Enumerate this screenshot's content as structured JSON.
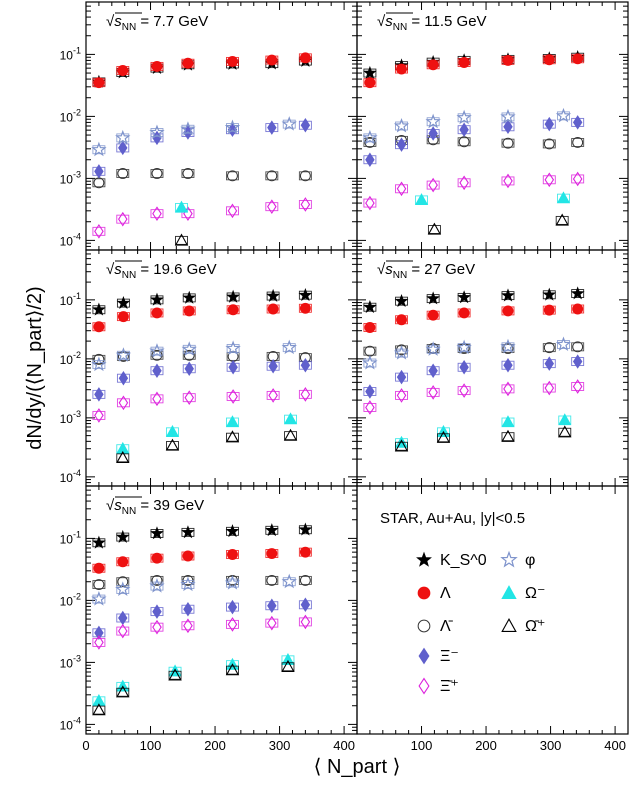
{
  "figure": {
    "y_axis_label": "dN/dy/(⟨N_part⟩/2)",
    "x_axis_label": "⟨ N_part ⟩",
    "experiment_label": "STAR, Au+Au, |y|<0.5"
  },
  "axes": {
    "x": {
      "min": 0,
      "max": 420,
      "ticks": [
        0,
        100,
        200,
        300,
        400
      ],
      "tick_labels": [
        "0",
        "100",
        "200",
        "300",
        "400"
      ]
    },
    "y": {
      "scale": "log",
      "min": 7e-05,
      "max": 0.7,
      "ticks": [
        0.0001,
        0.001,
        0.01,
        0.1
      ],
      "tick_labels": [
        "10^-4",
        "10^-3",
        "10^-2",
        "10^-1"
      ]
    }
  },
  "species": [
    {
      "key": "K0S",
      "label": "K_S^0",
      "marker": "star-filled",
      "color": "#000000"
    },
    {
      "key": "phi",
      "label": "φ",
      "marker": "star-open",
      "color": "#7f94cc"
    },
    {
      "key": "Lambda",
      "label": "Λ",
      "marker": "circle-filled",
      "color": "#ee1111"
    },
    {
      "key": "Omega",
      "label": "Ω⁻",
      "marker": "triangle-filled",
      "color": "#22e5e5"
    },
    {
      "key": "AntiLambda",
      "label": "Λ̄",
      "marker": "circle-open",
      "color": "#333333"
    },
    {
      "key": "AntiOmega",
      "label": "Ω̄⁺",
      "marker": "triangle-open",
      "color": "#000000"
    },
    {
      "key": "Xi",
      "label": "Ξ⁻",
      "marker": "diamond-filled",
      "color": "#6060cc"
    },
    {
      "key": "AntiXi",
      "label": "Ξ̄⁺",
      "marker": "diamond-open",
      "color": "#dd22dd"
    }
  ],
  "chart_data": [
    {
      "type": "scatter",
      "y_scale": "log",
      "energy_label": "√s_NN = 7.7 GeV",
      "series": [
        {
          "name": "K_S^0",
          "x": [
            20,
            57,
            110,
            158,
            227,
            288,
            340
          ],
          "y": [
            0.036,
            0.051,
            0.06,
            0.068,
            0.07,
            0.071,
            0.078
          ]
        },
        {
          "name": "Λ",
          "x": [
            20,
            57,
            110,
            158,
            227,
            288,
            340
          ],
          "y": [
            0.035,
            0.055,
            0.064,
            0.072,
            0.077,
            0.081,
            0.088
          ]
        },
        {
          "name": "Λ̄",
          "x": [
            20,
            57,
            110,
            158,
            227,
            288,
            340
          ],
          "y": [
            0.00085,
            0.0012,
            0.0012,
            0.0012,
            0.0011,
            0.0011,
            0.0011
          ]
        },
        {
          "name": "Ξ⁻",
          "x": [
            20,
            57,
            110,
            158,
            227,
            288,
            340
          ],
          "y": [
            0.0013,
            0.0031,
            0.0045,
            0.0055,
            0.0061,
            0.0066,
            0.0072
          ]
        },
        {
          "name": "Ξ̄⁺",
          "x": [
            20,
            57,
            110,
            158,
            227,
            288,
            340
          ],
          "y": [
            0.00014,
            0.00022,
            0.00027,
            0.00027,
            0.0003,
            0.00035,
            0.00038
          ]
        },
        {
          "name": "φ",
          "x": [
            20,
            57,
            110,
            158,
            227,
            315
          ],
          "y": [
            0.0029,
            0.0045,
            0.0055,
            0.0062,
            0.0066,
            0.0075
          ]
        },
        {
          "name": "Ω⁻",
          "x": [
            148
          ],
          "y": [
            0.00034
          ]
        },
        {
          "name": "Ω̄⁺",
          "x": [
            148
          ],
          "y": [
            0.0001
          ]
        }
      ]
    },
    {
      "type": "scatter",
      "y_scale": "log",
      "energy_label": "√s_NN = 11.5 GeV",
      "series": [
        {
          "name": "K_S^0",
          "x": [
            20,
            69,
            118,
            166,
            234,
            298,
            342
          ],
          "y": [
            0.05,
            0.066,
            0.075,
            0.08,
            0.083,
            0.086,
            0.09
          ]
        },
        {
          "name": "Λ",
          "x": [
            20,
            69,
            118,
            166,
            234,
            298,
            342
          ],
          "y": [
            0.035,
            0.058,
            0.068,
            0.074,
            0.08,
            0.082,
            0.085
          ]
        },
        {
          "name": "Λ̄",
          "x": [
            20,
            69,
            118,
            166,
            234,
            298,
            342
          ],
          "y": [
            0.0038,
            0.0041,
            0.0042,
            0.0039,
            0.0037,
            0.0036,
            0.0038
          ]
        },
        {
          "name": "Ξ⁻",
          "x": [
            20,
            69,
            118,
            166,
            234,
            298,
            342
          ],
          "y": [
            0.002,
            0.0035,
            0.0053,
            0.0061,
            0.0068,
            0.0075,
            0.008
          ]
        },
        {
          "name": "Ξ̄⁺",
          "x": [
            20,
            69,
            118,
            166,
            234,
            298,
            342
          ],
          "y": [
            0.0004,
            0.00068,
            0.00078,
            0.00085,
            0.00091,
            0.00095,
            0.00098
          ]
        },
        {
          "name": "φ",
          "x": [
            20,
            69,
            118,
            166,
            234,
            320
          ],
          "y": [
            0.0045,
            0.007,
            0.0082,
            0.0095,
            0.0098,
            0.0102
          ]
        },
        {
          "name": "Ω⁻",
          "x": [
            100,
            320
          ],
          "y": [
            0.00045,
            0.00048
          ]
        },
        {
          "name": "Ω̄⁺",
          "x": [
            120,
            318
          ],
          "y": [
            0.00015,
            0.00021
          ]
        }
      ]
    },
    {
      "type": "scatter",
      "y_scale": "log",
      "energy_label": "√s_NN = 19.6 GeV",
      "series": [
        {
          "name": "K_S^0",
          "x": [
            20,
            58,
            110,
            160,
            228,
            290,
            340
          ],
          "y": [
            0.068,
            0.088,
            0.1,
            0.108,
            0.112,
            0.116,
            0.12
          ]
        },
        {
          "name": "Λ",
          "x": [
            20,
            58,
            110,
            160,
            228,
            290,
            340
          ],
          "y": [
            0.035,
            0.052,
            0.06,
            0.065,
            0.068,
            0.07,
            0.072
          ]
        },
        {
          "name": "Λ̄",
          "x": [
            20,
            58,
            110,
            160,
            228,
            290,
            340
          ],
          "y": [
            0.0098,
            0.011,
            0.0115,
            0.0115,
            0.011,
            0.011,
            0.0105
          ]
        },
        {
          "name": "Ξ⁻",
          "x": [
            20,
            58,
            110,
            160,
            228,
            290,
            340
          ],
          "y": [
            0.0025,
            0.0047,
            0.0063,
            0.0068,
            0.0072,
            0.0075,
            0.0078
          ]
        },
        {
          "name": "Ξ̄⁺",
          "x": [
            20,
            58,
            110,
            160,
            228,
            290,
            340
          ],
          "y": [
            0.0011,
            0.0018,
            0.0021,
            0.0022,
            0.0023,
            0.0024,
            0.0025
          ]
        },
        {
          "name": "φ",
          "x": [
            20,
            58,
            110,
            160,
            228,
            315
          ],
          "y": [
            0.008,
            0.0115,
            0.0135,
            0.0145,
            0.015,
            0.0155
          ]
        },
        {
          "name": "Ω⁻",
          "x": [
            57,
            134,
            227,
            317
          ],
          "y": [
            0.0003,
            0.00058,
            0.00085,
            0.00095
          ]
        },
        {
          "name": "Ω̄⁺",
          "x": [
            57,
            134,
            227,
            317
          ],
          "y": [
            0.00021,
            0.00034,
            0.00047,
            0.0005
          ]
        }
      ]
    },
    {
      "type": "scatter",
      "y_scale": "log",
      "energy_label": "√s_NN = 27 GeV",
      "series": [
        {
          "name": "K_S^0",
          "x": [
            20,
            69,
            118,
            166,
            234,
            298,
            342
          ],
          "y": [
            0.075,
            0.095,
            0.105,
            0.11,
            0.118,
            0.122,
            0.128
          ]
        },
        {
          "name": "Λ",
          "x": [
            20,
            69,
            118,
            166,
            234,
            298,
            342
          ],
          "y": [
            0.034,
            0.046,
            0.055,
            0.06,
            0.065,
            0.067,
            0.07
          ]
        },
        {
          "name": "Λ̄",
          "x": [
            20,
            69,
            118,
            166,
            234,
            298,
            342
          ],
          "y": [
            0.0135,
            0.0142,
            0.015,
            0.015,
            0.015,
            0.0155,
            0.016
          ]
        },
        {
          "name": "Ξ⁻",
          "x": [
            20,
            69,
            118,
            166,
            234,
            298,
            342
          ],
          "y": [
            0.0028,
            0.0049,
            0.0063,
            0.0072,
            0.0078,
            0.0083,
            0.009
          ]
        },
        {
          "name": "Ξ̄⁺",
          "x": [
            20,
            69,
            118,
            166,
            234,
            298,
            342
          ],
          "y": [
            0.0015,
            0.0024,
            0.0027,
            0.0029,
            0.0031,
            0.0032,
            0.0034
          ]
        },
        {
          "name": "φ",
          "x": [
            20,
            69,
            118,
            166,
            234,
            320
          ],
          "y": [
            0.0085,
            0.0125,
            0.0145,
            0.0155,
            0.016,
            0.0175
          ]
        },
        {
          "name": "Ω⁻",
          "x": [
            69,
            134,
            234,
            322
          ],
          "y": [
            0.00038,
            0.00058,
            0.00085,
            0.00092
          ]
        },
        {
          "name": "Ω̄⁺",
          "x": [
            69,
            134,
            234,
            322
          ],
          "y": [
            0.00033,
            0.00046,
            0.00048,
            0.00057
          ]
        }
      ]
    },
    {
      "type": "scatter",
      "y_scale": "log",
      "energy_label": "√s_NN = 39 GeV",
      "series": [
        {
          "name": "K_S^0",
          "x": [
            20,
            57,
            110,
            158,
            227,
            288,
            340
          ],
          "y": [
            0.085,
            0.105,
            0.12,
            0.125,
            0.13,
            0.135,
            0.138
          ]
        },
        {
          "name": "Λ",
          "x": [
            20,
            57,
            110,
            158,
            227,
            288,
            340
          ],
          "y": [
            0.033,
            0.042,
            0.048,
            0.052,
            0.055,
            0.057,
            0.06
          ]
        },
        {
          "name": "Λ̄",
          "x": [
            20,
            57,
            110,
            158,
            227,
            288,
            340
          ],
          "y": [
            0.018,
            0.02,
            0.021,
            0.021,
            0.021,
            0.021,
            0.021
          ]
        },
        {
          "name": "Ξ⁻",
          "x": [
            20,
            57,
            110,
            158,
            227,
            288,
            340
          ],
          "y": [
            0.003,
            0.0052,
            0.0066,
            0.0072,
            0.0078,
            0.0082,
            0.0085
          ]
        },
        {
          "name": "Ξ̄⁺",
          "x": [
            20,
            57,
            110,
            158,
            227,
            288,
            340
          ],
          "y": [
            0.0021,
            0.0032,
            0.0037,
            0.0039,
            0.0041,
            0.0043,
            0.0045
          ]
        },
        {
          "name": "φ",
          "x": [
            20,
            57,
            110,
            158,
            227,
            315
          ],
          "y": [
            0.0105,
            0.015,
            0.017,
            0.018,
            0.019,
            0.02
          ]
        },
        {
          "name": "Ω⁻",
          "x": [
            20,
            57,
            138,
            227,
            313
          ],
          "y": [
            0.00024,
            0.00041,
            0.00072,
            0.00092,
            0.0011
          ]
        },
        {
          "name": "Ω̄⁺",
          "x": [
            20,
            57,
            138,
            227,
            313
          ],
          "y": [
            0.00017,
            0.00033,
            0.00062,
            0.00075,
            0.00085
          ]
        }
      ]
    }
  ]
}
